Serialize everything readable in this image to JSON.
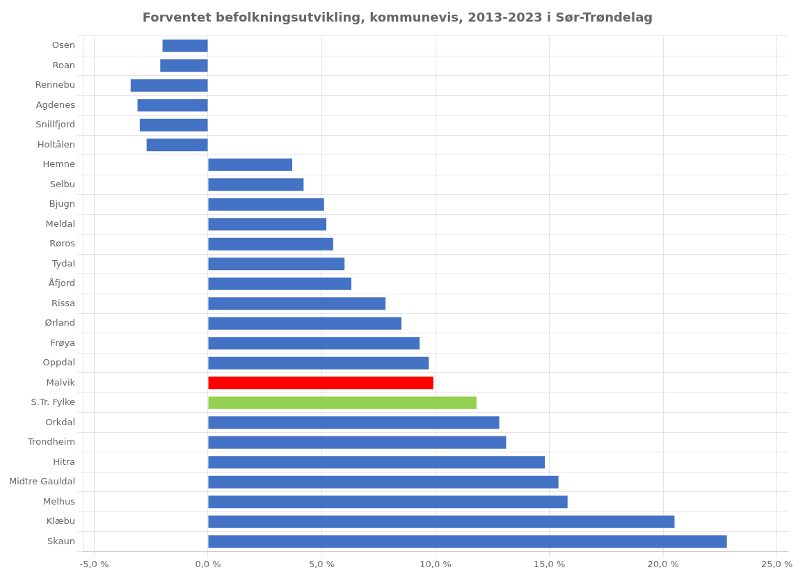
{
  "chart_data": {
    "type": "bar",
    "orientation": "horizontal",
    "title": "Forventet befolkningsutvikling, kommunevis, 2013-2023 i Sør-Trøndelag",
    "categories": [
      "Osen",
      "Roan",
      "Rennebu",
      "Agdenes",
      "Snillfjord",
      "Holtålen",
      "Hemne",
      "Selbu",
      "Bjugn",
      "Meldal",
      "Røros",
      "Tydal",
      "Åfjord",
      "Rissa",
      "Ørland",
      "Frøya",
      "Oppdal",
      "Malvik",
      "S.Tr. Fylke",
      "Orkdal",
      "Trondheim",
      "Hitra",
      "Midtre Gauldal",
      "Melhus",
      "Klæbu",
      "Skaun"
    ],
    "values": [
      -0.02,
      -0.021,
      -0.034,
      -0.031,
      -0.03,
      -0.027,
      0.037,
      0.042,
      0.051,
      0.052,
      0.055,
      0.06,
      0.063,
      0.078,
      0.085,
      0.093,
      0.097,
      0.099,
      0.118,
      0.128,
      0.131,
      0.148,
      0.154,
      0.158,
      0.205,
      0.228
    ],
    "colors": [
      "#4472C4",
      "#4472C4",
      "#4472C4",
      "#4472C4",
      "#4472C4",
      "#4472C4",
      "#4472C4",
      "#4472C4",
      "#4472C4",
      "#4472C4",
      "#4472C4",
      "#4472C4",
      "#4472C4",
      "#4472C4",
      "#4472C4",
      "#4472C4",
      "#4472C4",
      "#FF0000",
      "#92D050",
      "#4472C4",
      "#4472C4",
      "#4472C4",
      "#4472C4",
      "#4472C4",
      "#4472C4",
      "#4472C4"
    ],
    "xlim": [
      -0.055,
      0.255
    ],
    "xticks": [
      {
        "value": -0.05,
        "label": "-5,0 %"
      },
      {
        "value": 0.0,
        "label": "0,0 %"
      },
      {
        "value": 0.05,
        "label": "5,0 %"
      },
      {
        "value": 0.1,
        "label": "10,0 %"
      },
      {
        "value": 0.15,
        "label": "15,0 %"
      },
      {
        "value": 0.2,
        "label": "20,0 %"
      },
      {
        "value": 0.25,
        "label": "25,0 %"
      }
    ],
    "grid": true
  }
}
